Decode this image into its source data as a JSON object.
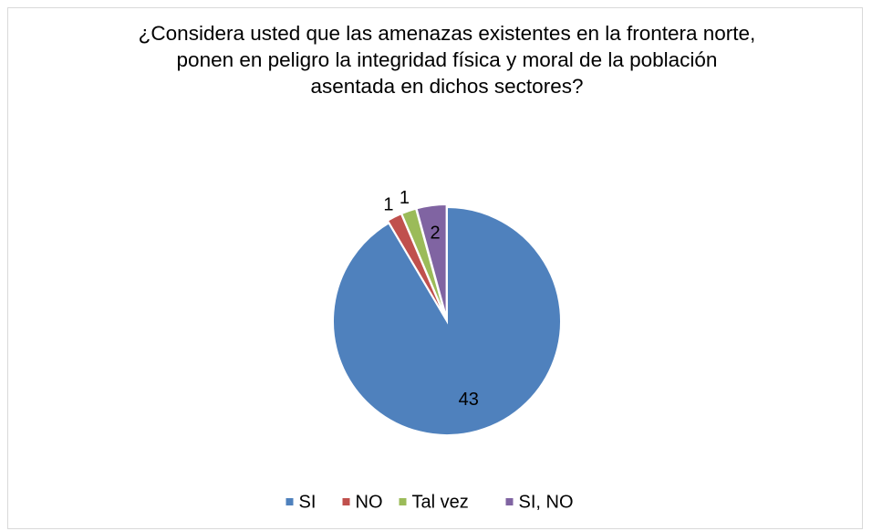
{
  "chart_data": {
    "type": "pie",
    "title": "¿Considera usted que las amenazas existentes en la frontera norte, ponen en peligro la integridad física y moral de la población asentada en dichos sectores?",
    "categories": [
      "SI",
      "NO",
      "Tal vez",
      "SI, NO"
    ],
    "values": [
      43,
      1,
      1,
      2
    ],
    "colors": [
      "#4f81bd",
      "#c0504d",
      "#9bbb59",
      "#8064a2"
    ],
    "legend": "bottom"
  }
}
